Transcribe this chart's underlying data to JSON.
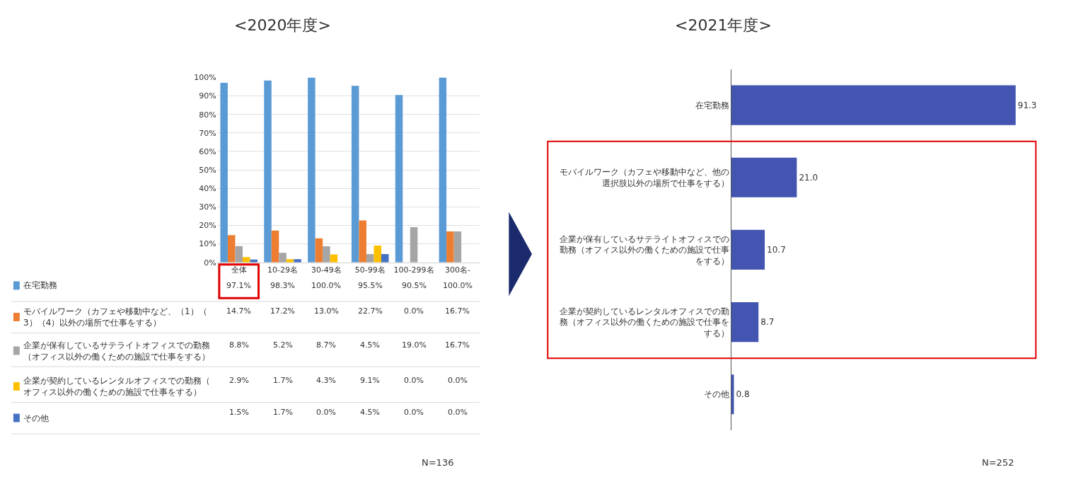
{
  "chart_data": [
    {
      "type": "bar",
      "title": "<2020年度>",
      "categories": [
        "全体",
        "10-29名",
        "30-49名",
        "50-99名",
        "100-299名",
        "300名-"
      ],
      "series": [
        {
          "name": "在宅勤務",
          "color": "#5b9bd5",
          "values": [
            97.1,
            98.3,
            100.0,
            95.5,
            90.5,
            100.0
          ],
          "value_labels": [
            "97.1%",
            "98.3%",
            "100.0%",
            "95.5%",
            "90.5%",
            "100.0%"
          ]
        },
        {
          "name": "モバイルワーク（カフェや移動中など、（1）（3）（4）以外の場所で仕事をする）",
          "color": "#ed7d31",
          "values": [
            14.7,
            17.2,
            13.0,
            22.7,
            0.0,
            16.7
          ],
          "value_labels": [
            "14.7%",
            "17.2%",
            "13.0%",
            "22.7%",
            "0.0%",
            "16.7%"
          ]
        },
        {
          "name": "企業が保有しているサテライトオフィスでの勤務（オフィス以外の働くための施設で仕事をする）",
          "color": "#a5a5a5",
          "values": [
            8.8,
            5.2,
            8.7,
            4.5,
            19.0,
            16.7
          ],
          "value_labels": [
            "8.8%",
            "5.2%",
            "8.7%",
            "4.5%",
            "19.0%",
            "16.7%"
          ]
        },
        {
          "name": "企業が契約しているレンタルオフィスでの勤務（オフィス以外の働くための施設で仕事をする）",
          "color": "#ffc000",
          "values": [
            2.9,
            1.7,
            4.3,
            9.1,
            0.0,
            0.0
          ],
          "value_labels": [
            "2.9%",
            "1.7%",
            "4.3%",
            "9.1%",
            "0.0%",
            "0.0%"
          ]
        },
        {
          "name": "その他",
          "color": "#4472c4",
          "values": [
            1.5,
            1.7,
            0.0,
            4.5,
            0.0,
            0.0
          ],
          "value_labels": [
            "1.5%",
            "1.7%",
            "0.0%",
            "4.5%",
            "0.0%",
            "0.0%"
          ]
        }
      ],
      "ylim": [
        0,
        100
      ],
      "yticks": [
        {
          "value": 0,
          "label": "0%"
        },
        {
          "value": 10,
          "label": "10%"
        },
        {
          "value": 20,
          "label": "20%"
        },
        {
          "value": 30,
          "label": "30%"
        },
        {
          "value": 40,
          "label": "40%"
        },
        {
          "value": 50,
          "label": "50%"
        },
        {
          "value": 60,
          "label": "60%"
        },
        {
          "value": 70,
          "label": "70%"
        },
        {
          "value": 80,
          "label": "80%"
        },
        {
          "value": 90,
          "label": "90%"
        },
        {
          "value": 100,
          "label": "100%"
        }
      ],
      "grid": "y",
      "legend": "bottom left",
      "annotations": [
        "N=136"
      ]
    },
    {
      "type": "bar",
      "title": "<2021年度>",
      "orientation": "horizontal",
      "categories": [
        "在宅勤務",
        "モバイルワーク（カフェや移動中など、他の選択肢以外の場所で仕事をする）",
        "企業が保有しているサテライトオフィスでの勤務（オフィス以外の働くための施設で仕事をする）",
        "企業が契約しているレンタルオフィスでの勤務（オフィス以外の働くための施設で仕事をする）",
        "その他"
      ],
      "values": [
        91.3,
        21.0,
        10.7,
        8.7,
        0.8
      ],
      "value_labels": [
        "91.3",
        "21.0",
        "10.7",
        "8.7",
        "0.8"
      ],
      "color": "#4355b0",
      "tick_labels": "y",
      "annotations": [
        "N=252"
      ]
    }
  ]
}
